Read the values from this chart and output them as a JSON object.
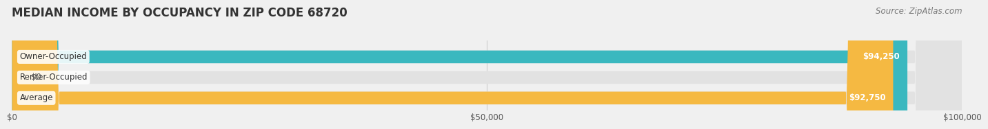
{
  "title": "MEDIAN INCOME BY OCCUPANCY IN ZIP CODE 68720",
  "source": "Source: ZipAtlas.com",
  "categories": [
    "Owner-Occupied",
    "Renter-Occupied",
    "Average"
  ],
  "values": [
    94250,
    0,
    92750
  ],
  "bar_colors": [
    "#3ab8bf",
    "#c9a8d4",
    "#f5b942"
  ],
  "bar_labels": [
    "$94,250",
    "$0",
    "$92,750"
  ],
  "xlim": [
    0,
    100000
  ],
  "xticks": [
    0,
    50000,
    100000
  ],
  "xtick_labels": [
    "$0",
    "$50,000",
    "$100,000"
  ],
  "bg_color": "#f0f0f0",
  "bar_bg_color": "#e2e2e2",
  "title_fontsize": 12,
  "label_fontsize": 8.5,
  "source_fontsize": 8.5,
  "tick_fontsize": 8.5
}
